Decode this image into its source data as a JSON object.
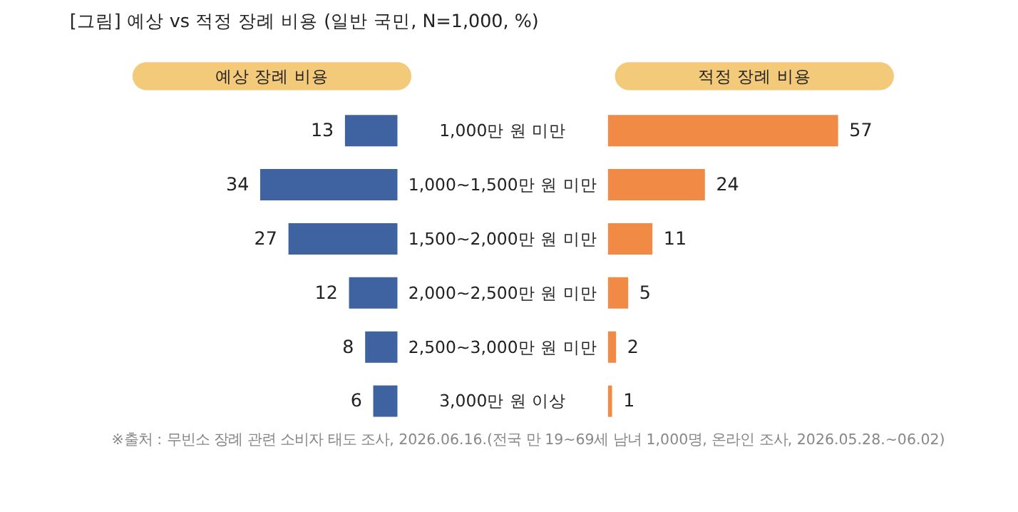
{
  "chart_data": [
    {
      "type": "bar",
      "orientation": "horizontal",
      "title": "[그림] 예상 vs 적정 장례 비용 (일반 국민, N=1,000, %)",
      "subtitle": "예상 장례 비용",
      "categories": [
        "1,000만 원 미만",
        "1,000~1,500만 원 미만",
        "1,500~2,000만 원 미만",
        "2,000~2,500만 원 미만",
        "2,500~3,000만 원 미만",
        "3,000만 원 이상"
      ],
      "series": [
        {
          "color": "#3f62a0",
          "values": [
            13,
            34,
            27,
            12,
            8,
            6
          ]
        }
      ],
      "data_labels": true,
      "tick_labels": "y"
    },
    {
      "type": "bar",
      "orientation": "horizontal",
      "subtitle": "적정 장례 비용",
      "series": [
        {
          "color": "#f08a45",
          "values": [
            57,
            24,
            11,
            5,
            2,
            1
          ]
        }
      ],
      "data_labels": true,
      "tick_labels": false,
      "annotations": [
        "※출처 : 무빈소 장례 관련 소비자 태도 조사, 2026.06.16.(전국 만 19~69세 남녀 1,000명, 온라인 조사, 2026.05.28.~06.02)"
      ]
    }
  ]
}
